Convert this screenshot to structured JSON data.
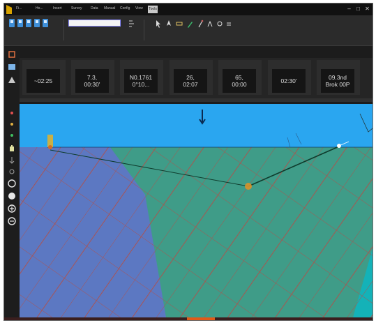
{
  "window": {
    "title": "",
    "menu": [
      {
        "label": "Fi...",
        "active": false
      },
      {
        "label": "Ho...",
        "active": false
      },
      {
        "label": "Insert",
        "active": false
      },
      {
        "label": "Survey",
        "active": false
      },
      {
        "label": "Data",
        "active": false
      },
      {
        "label": "Manual",
        "active": false
      },
      {
        "label": "Config",
        "active": false
      },
      {
        "label": "View",
        "active": false
      },
      {
        "label": "Tools",
        "active": true
      }
    ],
    "user_status": "",
    "controls": {
      "minimize": "–",
      "maximize": "□",
      "close": "✕"
    }
  },
  "ribbon": {
    "input_value": "",
    "group_labels": [
      "",
      ""
    ],
    "tools": [
      {
        "icon": "route-icon",
        "caption": ""
      },
      {
        "icon": "cursor-icon",
        "caption": ""
      },
      {
        "icon": "vessel-icon",
        "caption": ""
      },
      {
        "icon": "ruler-icon",
        "caption": ""
      },
      {
        "icon": "pen-icon",
        "caption": ""
      },
      {
        "icon": "marker-icon",
        "caption": ""
      },
      {
        "icon": "measure-icon",
        "caption": ""
      }
    ]
  },
  "data_boxes": [
    {
      "title": "",
      "line1": "~02:25",
      "line2": ""
    },
    {
      "title": "",
      "line1": "7.3,",
      "line2": "00:30'"
    },
    {
      "title": "",
      "line1": "N0.1761",
      "line2": "0°10..."
    },
    {
      "title": "",
      "line1": "26,",
      "line2": "02:07"
    },
    {
      "title": "",
      "line1": "65,",
      "line2": "00:00"
    },
    {
      "title": "",
      "line1": "02:30'",
      "line2": ""
    },
    {
      "title": "",
      "line1": "09.3nd",
      "line2": "Brok 00P"
    }
  ],
  "panel_strip_label": "",
  "map": {
    "colors": {
      "sky": "#2aa6f0",
      "zone_left": "#5c78c2",
      "zone_mid": "#3f9c88",
      "zone_right": "#14b2b8",
      "grid_line": "#b0504a",
      "route_line": "#0f3d2e"
    }
  },
  "bottom_bar": {
    "accent": "#e05a18"
  }
}
